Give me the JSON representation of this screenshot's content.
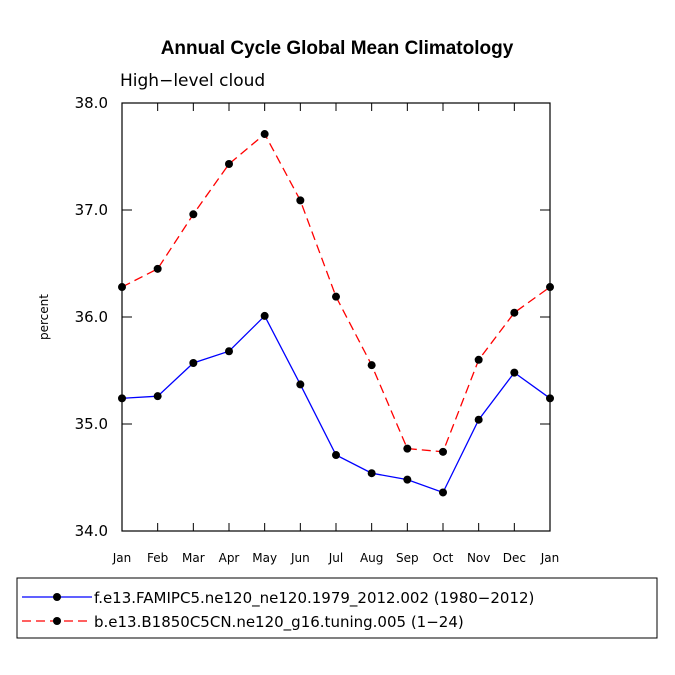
{
  "chart_data": {
    "type": "line",
    "title": "Annual Cycle Global Mean Climatology",
    "subtitle": "High−level cloud",
    "ylabel": "percent",
    "xlabel": "",
    "ylim": [
      34.0,
      38.0
    ],
    "yticks": [
      "34.0",
      "35.0",
      "36.0",
      "37.0",
      "38.0"
    ],
    "ytick_values": [
      34.0,
      35.0,
      36.0,
      37.0,
      38.0
    ],
    "categories": [
      "Jan",
      "Feb",
      "Mar",
      "Apr",
      "May",
      "Jun",
      "Jul",
      "Aug",
      "Sep",
      "Oct",
      "Nov",
      "Dec",
      "Jan"
    ],
    "series": [
      {
        "name": "f.e13.FAMIPC5.ne120_ne120.1979_2012.002 (1980−2012)",
        "color": "#0000ff",
        "dash": "solid",
        "values": [
          35.24,
          35.26,
          35.57,
          35.68,
          36.01,
          35.37,
          34.71,
          34.54,
          34.48,
          34.36,
          35.04,
          35.48,
          35.24
        ]
      },
      {
        "name": "b.e13.B1850C5CN.ne120_g16.tuning.005 (1−24)",
        "color": "#ff0000",
        "dash": "dashed",
        "values": [
          36.28,
          36.45,
          36.96,
          37.43,
          37.71,
          37.09,
          36.19,
          35.55,
          34.77,
          34.74,
          35.6,
          36.04,
          36.28
        ]
      }
    ],
    "legend_position": "bottom"
  }
}
